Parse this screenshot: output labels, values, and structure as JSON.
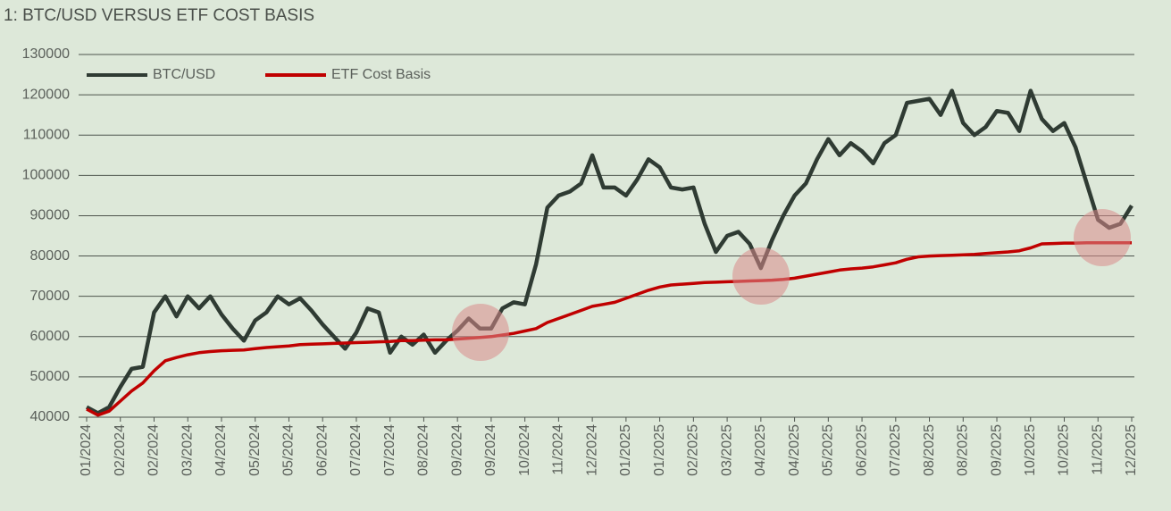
{
  "chart_data": {
    "type": "line",
    "title": "1: BTC/USD VERSUS ETF COST BASIS",
    "categories": [
      "01/2024",
      null,
      null,
      "02/2024",
      null,
      null,
      "02/2024",
      null,
      null,
      "03/2024",
      null,
      null,
      "04/2024",
      null,
      null,
      "05/2024",
      null,
      null,
      "05/2024",
      null,
      null,
      "06/2024",
      null,
      null,
      "07/2024",
      null,
      null,
      "07/2024",
      null,
      null,
      "08/2024",
      null,
      null,
      "09/2024",
      null,
      null,
      "09/2024",
      null,
      null,
      "10/2024",
      null,
      null,
      "11/2024",
      null,
      null,
      "12/2024",
      null,
      null,
      "01/2025",
      null,
      null,
      "01/2025",
      null,
      null,
      "02/2025",
      null,
      null,
      "03/2025",
      null,
      null,
      "04/2025",
      null,
      null,
      "04/2025",
      null,
      null,
      "05/2025",
      null,
      null,
      "06/2025",
      null,
      null,
      "07/2025",
      null,
      null,
      "08/2025",
      null,
      null,
      "08/2025",
      null,
      null,
      "09/2025",
      null,
      null,
      "10/2025",
      null,
      null,
      "10/2025",
      null,
      null,
      "11/2025",
      null,
      null,
      "12/2025"
    ],
    "series": [
      {
        "name": "BTC/USD",
        "color": "#2f3b33",
        "values": [
          42500,
          41000,
          42500,
          47500,
          52000,
          52500,
          66000,
          70000,
          65000,
          70000,
          67000,
          70000,
          65500,
          62000,
          59000,
          64000,
          66000,
          70000,
          68000,
          69500,
          66500,
          63000,
          60000,
          57000,
          61000,
          67000,
          66000,
          56000,
          60000,
          58000,
          60500,
          56000,
          59000,
          61500,
          64500,
          62000,
          62000,
          67000,
          68500,
          68000,
          78000,
          92000,
          95000,
          96000,
          98000,
          105000,
          97000,
          97000,
          95000,
          99000,
          104000,
          102000,
          97000,
          96500,
          97000,
          88000,
          81000,
          85000,
          86000,
          83000,
          77000,
          84000,
          90000,
          95000,
          98000,
          104000,
          109000,
          105000,
          108000,
          106000,
          103000,
          108000,
          110000,
          118000,
          118500,
          119000,
          115000,
          121000,
          113000,
          110000,
          112000,
          116000,
          115500,
          111000,
          121000,
          114000,
          111000,
          113000,
          107000,
          98000,
          89000,
          87000,
          88000,
          92500
        ]
      },
      {
        "name": "ETF Cost Basis",
        "color": "#c00000",
        "values": [
          42000,
          40500,
          41500,
          44000,
          46500,
          48500,
          51500,
          54000,
          54800,
          55500,
          56000,
          56300,
          56500,
          56600,
          56700,
          57000,
          57300,
          57500,
          57700,
          58000,
          58100,
          58200,
          58300,
          58400,
          58500,
          58600,
          58700,
          58800,
          59000,
          59000,
          59100,
          59200,
          59200,
          59400,
          59600,
          59800,
          60000,
          60400,
          60800,
          61400,
          62000,
          63500,
          64500,
          65500,
          66500,
          67500,
          68000,
          68500,
          69500,
          70500,
          71500,
          72300,
          72800,
          73000,
          73200,
          73400,
          73500,
          73600,
          73700,
          73800,
          73900,
          74000,
          74200,
          74500,
          75000,
          75500,
          76000,
          76500,
          76800,
          77000,
          77300,
          77800,
          78300,
          79200,
          79800,
          80000,
          80100,
          80200,
          80300,
          80400,
          80600,
          80800,
          81000,
          81300,
          82000,
          83000,
          83100,
          83200,
          83200,
          83300,
          83300,
          83300,
          83300,
          83300
        ]
      }
    ],
    "ylim": [
      40000,
      130000
    ],
    "yticks": [
      40000,
      50000,
      60000,
      70000,
      80000,
      90000,
      100000,
      110000,
      120000,
      130000
    ],
    "grid": true,
    "legend": "top-left"
  }
}
